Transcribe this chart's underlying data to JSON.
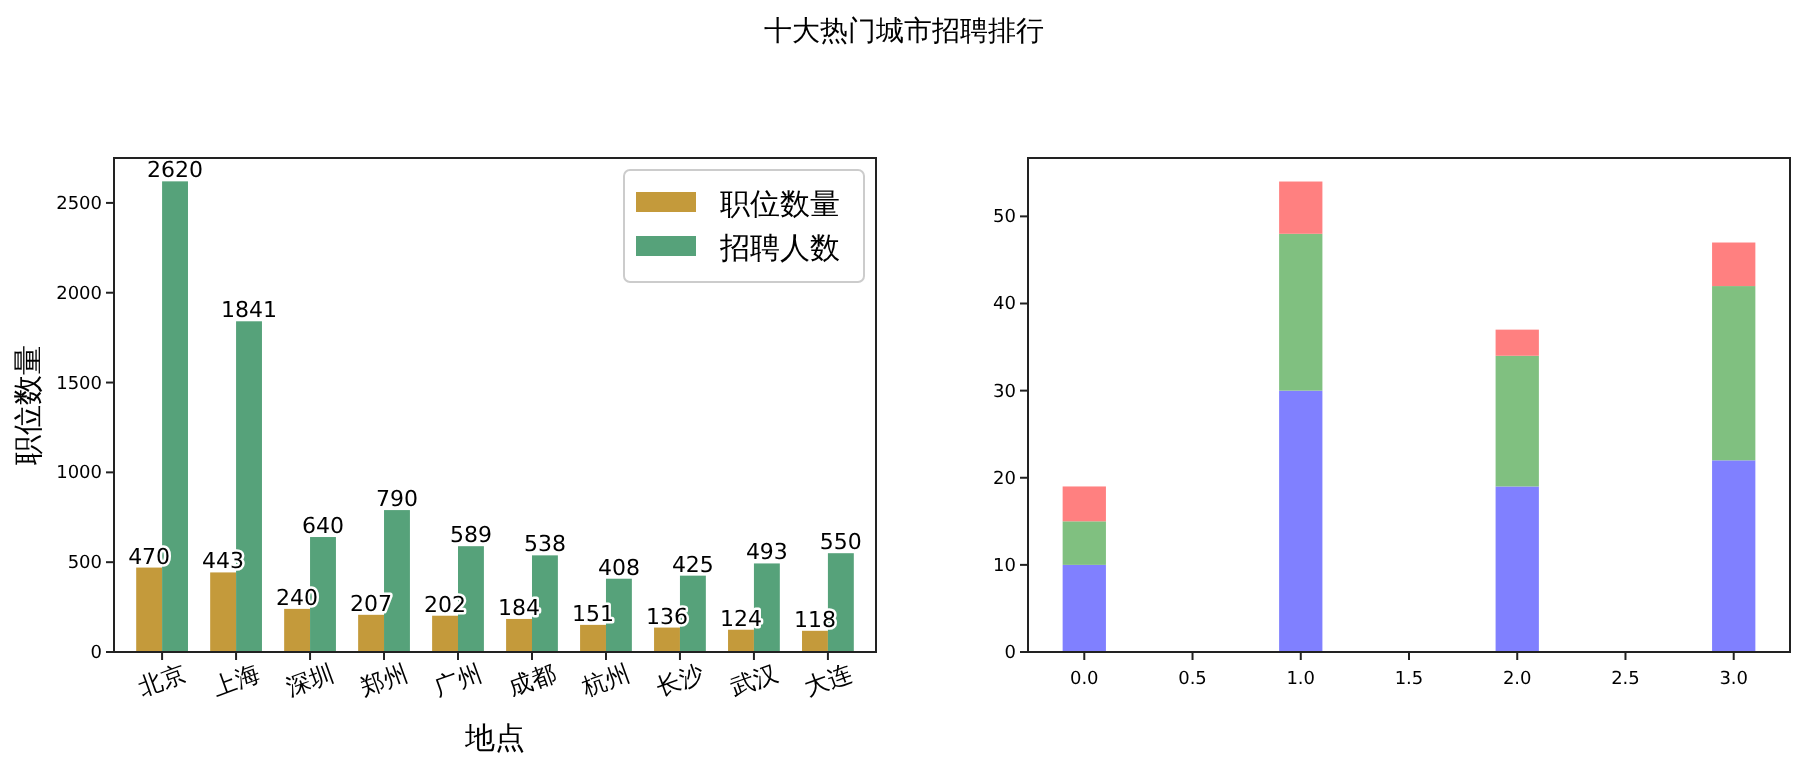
{
  "chart_data": [
    {
      "type": "bar",
      "title": "十大热门城市招聘排行",
      "xlabel": "地点",
      "ylabel": "职位数量",
      "categories": [
        "北京",
        "上海",
        "深圳",
        "郑州",
        "广州",
        "成都",
        "杭州",
        "长沙",
        "武汉",
        "大连"
      ],
      "series": [
        {
          "name": "职位数量",
          "color": "#c49a3b",
          "values": [
            470,
            443,
            240,
            207,
            202,
            184,
            151,
            136,
            124,
            118
          ]
        },
        {
          "name": "招聘人数",
          "color": "#56a27a",
          "values": [
            2620,
            1841,
            640,
            790,
            589,
            538,
            408,
            425,
            493,
            550
          ]
        }
      ],
      "ylim": [
        0,
        2750
      ],
      "yticks": [
        0,
        500,
        1000,
        1500,
        2000,
        2500
      ],
      "data_labels": true,
      "legend": "top right"
    },
    {
      "type": "bar",
      "stacked": true,
      "x": [
        0,
        1,
        2,
        3
      ],
      "series": [
        {
          "color": "#8080ff",
          "values": [
            10,
            30,
            19,
            22
          ]
        },
        {
          "color": "#80c080",
          "values": [
            5,
            18,
            15,
            20
          ]
        },
        {
          "color": "#ff8080",
          "values": [
            4,
            6,
            3,
            5
          ]
        }
      ],
      "xlim": [
        -0.26,
        3.26
      ],
      "xticks": [
        {
          "value": 0,
          "label": "0.0"
        },
        {
          "value": 0.5,
          "label": "0.5"
        },
        {
          "value": 1,
          "label": "1.0"
        },
        {
          "value": 1.5,
          "label": "1.5"
        },
        {
          "value": 2,
          "label": "2.0"
        },
        {
          "value": 2.5,
          "label": "2.5"
        },
        {
          "value": 3,
          "label": "3.0"
        }
      ],
      "ylim": [
        0,
        56.7
      ],
      "yticks": [
        0,
        10,
        20,
        30,
        40,
        50
      ]
    }
  ]
}
